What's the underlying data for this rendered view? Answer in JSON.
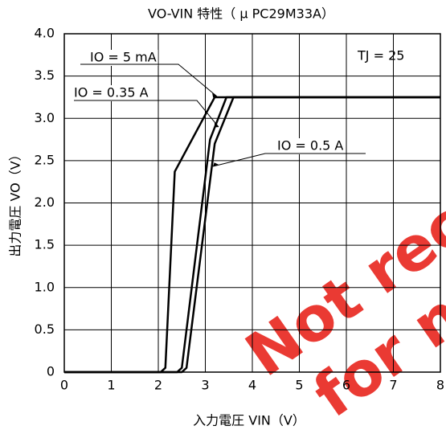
{
  "chart_data": {
    "type": "line",
    "title": "VO-VIN 特性（ μ PC29M33A）",
    "x_label": "入力電圧 VIN（V）",
    "y_label": "出力電圧 VO（V）",
    "annotations": [
      "TJ = 25"
    ],
    "watermark": [
      "Not recommended",
      "for new design"
    ],
    "xlim": [
      0,
      8
    ],
    "xticks": [
      0,
      1,
      2,
      3,
      4,
      5,
      6,
      7,
      8
    ],
    "ylim": [
      0,
      4.0
    ],
    "yticks": [
      0,
      {
        "value": 0.5,
        "label": "0.5"
      },
      {
        "value": 1.0,
        "label": "1.0"
      },
      {
        "value": 1.5,
        "label": "1.5"
      },
      {
        "value": 2.0,
        "label": "2.0"
      },
      {
        "value": 2.5,
        "label": "2.5"
      },
      {
        "value": 3.0,
        "label": "3.0"
      },
      {
        "value": 3.5,
        "label": "3.5"
      },
      {
        "value": 4.0,
        "label": "4.0"
      }
    ],
    "grid": true,
    "color": "#000000",
    "series": [
      {
        "name": "IO = 5 mA",
        "x": [
          0,
          2.05,
          2.15,
          2.35,
          3.2,
          8
        ],
        "values": [
          0,
          0,
          0.05,
          2.37,
          3.25,
          3.25
        ]
      },
      {
        "name": "IO = 0.35 A",
        "x": [
          0,
          2.4,
          2.5,
          3.1,
          3.45,
          8
        ],
        "values": [
          0,
          0,
          0.05,
          2.75,
          3.25,
          3.25
        ]
      },
      {
        "name": "IO = 0.5 A",
        "x": [
          0,
          2.5,
          2.6,
          3.2,
          3.6,
          8
        ],
        "values": [
          0,
          0,
          0.05,
          2.7,
          3.25,
          3.25
        ]
      }
    ]
  }
}
